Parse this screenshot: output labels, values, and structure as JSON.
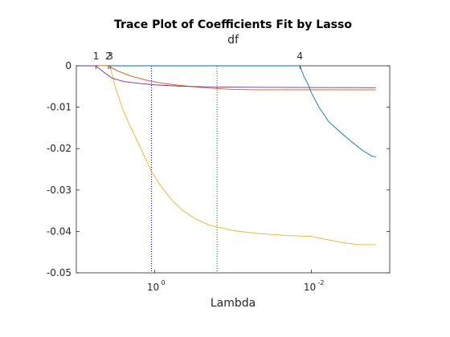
{
  "chart_data": {
    "type": "line",
    "title": "Trace Plot of Coefficients Fit by Lasso",
    "xlabel": "Lambda",
    "x2label": "df",
    "x_scale": "log",
    "x_reversed": true,
    "xlim": [
      10,
      0.001
    ],
    "ylim": [
      -0.05,
      0
    ],
    "yticks": [
      0,
      -0.01,
      -0.02,
      -0.03,
      -0.04,
      -0.05
    ],
    "ytick_labels": [
      "0",
      "-0.01",
      "-0.02",
      "-0.03",
      "-0.04",
      "-0.05"
    ],
    "xticks": [
      {
        "base": "10",
        "exp": "0",
        "value": 1
      },
      {
        "base": "10",
        "exp": "-2",
        "value": 0.01
      }
    ],
    "df_ticks": [
      {
        "label": "1",
        "x": 5.6
      },
      {
        "label": "2",
        "x": 3.9
      },
      {
        "label": "3",
        "x": 3.7
      },
      {
        "label": "4",
        "x": 0.014
      }
    ],
    "grid": false,
    "series": [
      {
        "color": "#0072BD",
        "x": [
          10,
          0.014,
          0.0125,
          0.011,
          0.01,
          0.008,
          0.006,
          0.004,
          0.003,
          0.0022,
          0.0017,
          0.0015
        ],
        "y": [
          0,
          0,
          -0.0025,
          -0.0045,
          -0.0065,
          -0.01,
          -0.0135,
          -0.0165,
          -0.0185,
          -0.0205,
          -0.0218,
          -0.022
        ]
      },
      {
        "color": "#D95319",
        "x": [
          10,
          3.9,
          3.0,
          2.0,
          1.2,
          0.8,
          0.5,
          0.3,
          0.2,
          0.1,
          0.05,
          0.0015
        ],
        "y": [
          0,
          0,
          -0.0012,
          -0.0025,
          -0.0036,
          -0.0042,
          -0.0047,
          -0.0051,
          -0.0054,
          -0.0057,
          -0.0058,
          -0.0058
        ]
      },
      {
        "color": "#EDB120",
        "x": [
          10,
          3.7,
          3.2,
          2.5,
          2.0,
          1.5,
          1.1,
          0.8,
          0.6,
          0.45,
          0.3,
          0.2,
          0.1,
          0.05,
          0.02,
          0.01,
          0.007,
          0.004,
          0.0025,
          0.0015
        ],
        "y": [
          0,
          0,
          -0.005,
          -0.011,
          -0.015,
          -0.02,
          -0.0255,
          -0.0295,
          -0.0325,
          -0.0348,
          -0.037,
          -0.0385,
          -0.0398,
          -0.0405,
          -0.041,
          -0.0412,
          -0.0418,
          -0.0427,
          -0.0432,
          -0.0432
        ]
      },
      {
        "color": "#7E2F8E",
        "x": [
          10,
          5.6,
          4.5,
          3.5,
          2.5,
          1.5,
          1.0,
          0.5,
          0.2,
          0.05,
          0.0015
        ],
        "y": [
          0,
          0,
          -0.0015,
          -0.003,
          -0.0038,
          -0.0043,
          -0.0046,
          -0.0049,
          -0.0051,
          -0.0052,
          -0.0053
        ]
      }
    ],
    "vlines": [
      {
        "x": 1.1,
        "color": "#0000FF",
        "style": "dotted"
      },
      {
        "x": 0.16,
        "color": "#008000",
        "style": "dotted"
      }
    ]
  }
}
